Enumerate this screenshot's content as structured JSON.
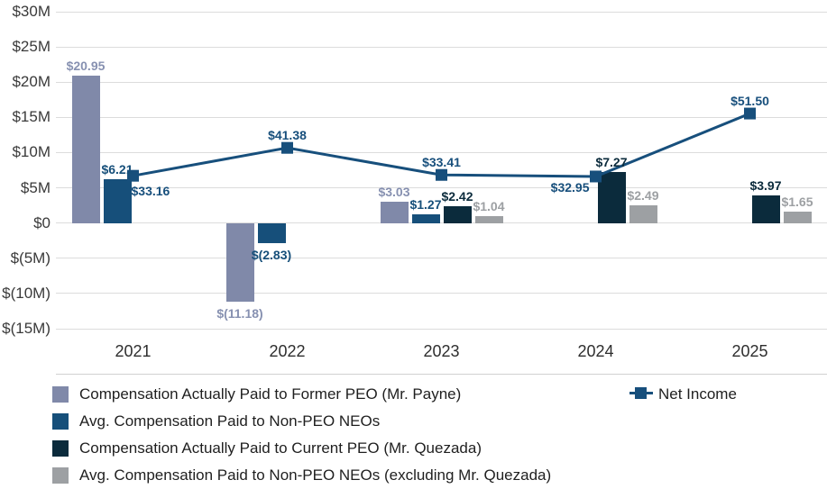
{
  "chart_data": {
    "type": "bar",
    "subtype": "grouped bars with line overlay (pay-versus-performance chart)",
    "categories": [
      "2021",
      "2022",
      "2023",
      "2024",
      "2025"
    ],
    "unit": "USD millions",
    "grid": true,
    "legend_position": "bottom",
    "y_axis": {
      "max": 30,
      "min": -15,
      "ticks": [
        {
          "label": "$30M",
          "value": 30
        },
        {
          "label": "$25M",
          "value": 25
        },
        {
          "label": "$20M",
          "value": 20
        },
        {
          "label": "$15M",
          "value": 15
        },
        {
          "label": "$10M",
          "value": 10
        },
        {
          "label": "$5M",
          "value": 5
        },
        {
          "label": "$0",
          "value": 0
        },
        {
          "label": "$(5M)",
          "value": -5
        },
        {
          "label": "$(10M)",
          "value": -10
        },
        {
          "label": "$(15M)",
          "value": -15
        }
      ]
    },
    "y2_axis": {
      "visible": false,
      "max": 81.5,
      "min": -11.9
    },
    "series": [
      {
        "key": "former-peo",
        "name": "Compensation Actually Paid to Former PEO (Mr. Payne)",
        "color": "#8089A9",
        "label_color": "#8791B1",
        "values": [
          20.95,
          -11.18,
          3.03,
          null,
          null
        ],
        "labels": [
          "$20.95",
          "$(11.18)",
          "$3.03",
          null,
          null
        ]
      },
      {
        "key": "non-peo-neos",
        "name": "Avg. Compensation Paid to Non-PEO NEOs",
        "color": "#164F7A",
        "label_color": "#164F7A",
        "values": [
          6.21,
          -2.83,
          1.27,
          null,
          null
        ],
        "labels": [
          "$6.21",
          "$(2.83)",
          "$1.27",
          null,
          null
        ]
      },
      {
        "key": "current-peo",
        "name": "Compensation Actually Paid to Current PEO (Mr. Quezada)",
        "color": "#0B2B3C",
        "label_color": "#0B2B3C",
        "values": [
          null,
          null,
          2.42,
          7.27,
          3.97
        ],
        "labels": [
          null,
          null,
          "$2.42",
          "$7.27",
          "$3.97"
        ]
      },
      {
        "key": "non-peo-neos-excl",
        "name": "Avg. Compensation Paid to Non-PEO NEOs (excluding Mr. Quezada)",
        "color": "#9DA0A3",
        "label_color": "#9DA0A3",
        "values": [
          null,
          null,
          1.04,
          2.49,
          1.65
        ],
        "labels": [
          null,
          null,
          "$1.04",
          "$2.49",
          "$1.65"
        ]
      }
    ],
    "line_series": {
      "key": "net-income",
      "name": "Net Income",
      "color": "#174F7C",
      "values": [
        33.16,
        41.38,
        33.41,
        32.95,
        51.5
      ],
      "labels": [
        "$33.16",
        "$41.38",
        "$33.41",
        "$32.95",
        "$51.50"
      ],
      "label_placement": [
        "below-right",
        "above",
        "above",
        "left-below",
        "above"
      ]
    }
  }
}
